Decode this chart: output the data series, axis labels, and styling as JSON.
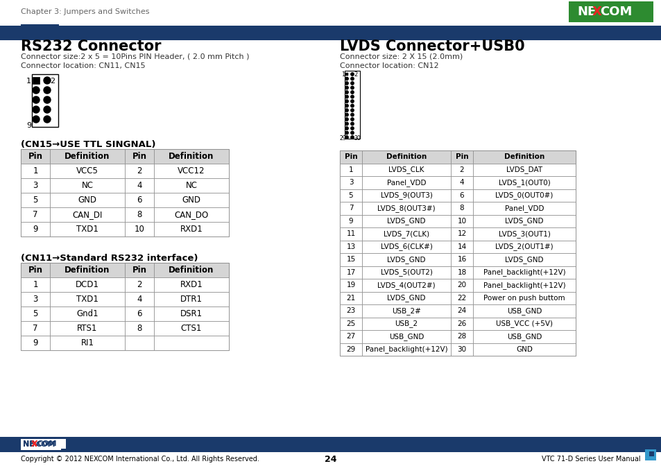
{
  "header_text": "Chapter 3: Jumpers and Switches",
  "page_number": "24",
  "footer_text": "Copyright © 2012 NEXCOM International Co., Ltd. All Rights Reserved.",
  "footer_right": "VTC 71-D Series User Manual",
  "rs232_title": "RS232 Connector",
  "rs232_sub1": "Connector size:2 x 5 = 10Pins PIN Header, ( 2.0 mm Pitch )",
  "rs232_sub2": "Connector location: CN11, CN15",
  "lvds_title": "LVDS Connector+USB0",
  "lvds_sub1": "Connector size: 2 X 15 (2.0mm)",
  "lvds_sub2": "Connector location: CN12",
  "cn15_label": "(CN15→USE TTL SINGNAL)",
  "cn15_headers": [
    "Pin",
    "Definition",
    "Pin",
    "Definition"
  ],
  "cn15_rows": [
    [
      "1",
      "VCC5",
      "2",
      "VCC12"
    ],
    [
      "3",
      "NC",
      "4",
      "NC"
    ],
    [
      "5",
      "GND",
      "6",
      "GND"
    ],
    [
      "7",
      "CAN_DI",
      "8",
      "CAN_DO"
    ],
    [
      "9",
      "TXD1",
      "10",
      "RXD1"
    ]
  ],
  "cn11_label": "(CN11→Standard RS232 interface)",
  "cn11_headers": [
    "Pin",
    "Definition",
    "Pin",
    "Definition"
  ],
  "cn11_rows": [
    [
      "1",
      "DCD1",
      "2",
      "RXD1"
    ],
    [
      "3",
      "TXD1",
      "4",
      "DTR1"
    ],
    [
      "5",
      "Gnd1",
      "6",
      "DSR1"
    ],
    [
      "7",
      "RTS1",
      "8",
      "CTS1"
    ],
    [
      "9",
      "RI1",
      "",
      ""
    ]
  ],
  "lvds_headers": [
    "Pin",
    "Definition",
    "Pin",
    "Definition"
  ],
  "lvds_rows": [
    [
      "1",
      "LVDS_CLK",
      "2",
      "LVDS_DAT"
    ],
    [
      "3",
      "Panel_VDD",
      "4",
      "LVDS_1(OUT0)"
    ],
    [
      "5",
      "LVDS_9(OUT3)",
      "6",
      "LVDS_0(OUT0#)"
    ],
    [
      "7",
      "LVDS_8(OUT3#)",
      "8",
      "Panel_VDD"
    ],
    [
      "9",
      "LVDS_GND",
      "10",
      "LVDS_GND"
    ],
    [
      "11",
      "LVDS_7(CLK)",
      "12",
      "LVDS_3(OUT1)"
    ],
    [
      "13",
      "LVDS_6(CLK#)",
      "14",
      "LVDS_2(OUT1#)"
    ],
    [
      "15",
      "LVDS_GND",
      "16",
      "LVDS_GND"
    ],
    [
      "17",
      "LVDS_5(OUT2)",
      "18",
      "Panel_backlight(+12V)"
    ],
    [
      "19",
      "LVDS_4(OUT2#)",
      "20",
      "Panel_backlight(+12V)"
    ],
    [
      "21",
      "LVDS_GND",
      "22",
      "Power on push buttom"
    ],
    [
      "23",
      "USB_2#",
      "24",
      "USB_GND"
    ],
    [
      "25",
      "USB_2",
      "26",
      "USB_VCC (+5V)"
    ],
    [
      "27",
      "USB_GND",
      "28",
      "USB_GND"
    ],
    [
      "29",
      "Panel_backlight(+12V)",
      "30",
      "GND"
    ]
  ],
  "nexcom_green": "#2d8b30",
  "nexcom_blue": "#1a3a6b",
  "table_header_bg": "#d5d5d5",
  "table_border": "#888888",
  "separator_line_color": "#1a3a6b",
  "separator_rect_color": "#1a3a6b",
  "bg_color": "#ffffff",
  "footer_bar_color": "#1a3a6b",
  "footer_bar2_color": "#2255aa"
}
